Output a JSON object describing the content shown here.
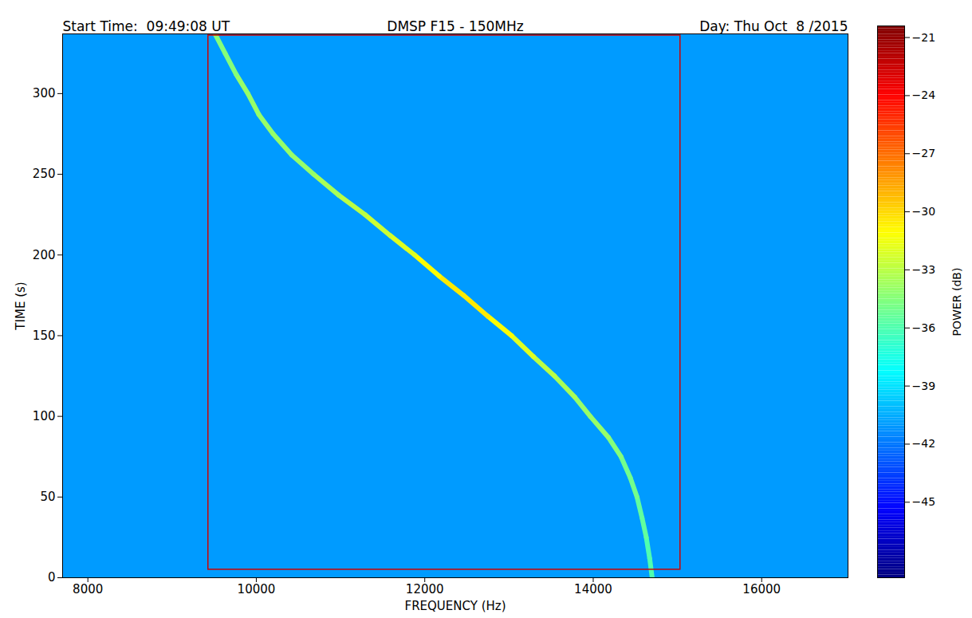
{
  "chart_data": {
    "type": "spectrogram",
    "title": "DMSP F15 - 150MHz",
    "title_left": "Start Time:  09:49:08 UT",
    "title_right": "Day: Thu Oct  8 /2015",
    "x_label": "FREQUENCY (Hz)",
    "y_label": "TIME (s)",
    "xlim": [
      7700,
      17025
    ],
    "ylim": [
      0,
      337
    ],
    "xticks": [
      8000,
      10000,
      12000,
      14000,
      16000
    ],
    "yticks": [
      0,
      50,
      100,
      150,
      200,
      250,
      300
    ],
    "grid": false,
    "x": [
      14700,
      14670,
      14630,
      14580,
      14520,
      14440,
      14330,
      14180,
      13965,
      13780,
      13540,
      13290,
      13030,
      12750,
      12460,
      12170,
      11880,
      11590,
      11290,
      10980,
      10680,
      10420,
      10200,
      10030,
      9900,
      9760,
      9630,
      9510
    ],
    "values": [
      0,
      12,
      25,
      37,
      50,
      62,
      75,
      87,
      100,
      112,
      125,
      137,
      150,
      162,
      175,
      187,
      200,
      212,
      225,
      237,
      250,
      262,
      275,
      287,
      300,
      312,
      325,
      337
    ],
    "power": [
      -36,
      -36,
      -35.5,
      -35.5,
      -35,
      -35,
      -34.5,
      -34,
      -34,
      -33.5,
      -33,
      -32,
      -31,
      -30.5,
      -30.5,
      -31,
      -32,
      -32.5,
      -33,
      -33.5,
      -34,
      -34,
      -34,
      -34,
      -34,
      -34.5,
      -34.5,
      -34.5
    ],
    "background_power": -41,
    "box": {
      "x": [
        9430,
        15035
      ],
      "y": [
        5,
        336
      ],
      "color": "#cc0000"
    },
    "colorbar": {
      "label": "POWER (dB)",
      "range": [
        -48.9,
        -20.4
      ],
      "ticks": [
        -21,
        -24,
        -27,
        -30,
        -33,
        -36,
        -39,
        -42,
        -45
      ]
    }
  }
}
